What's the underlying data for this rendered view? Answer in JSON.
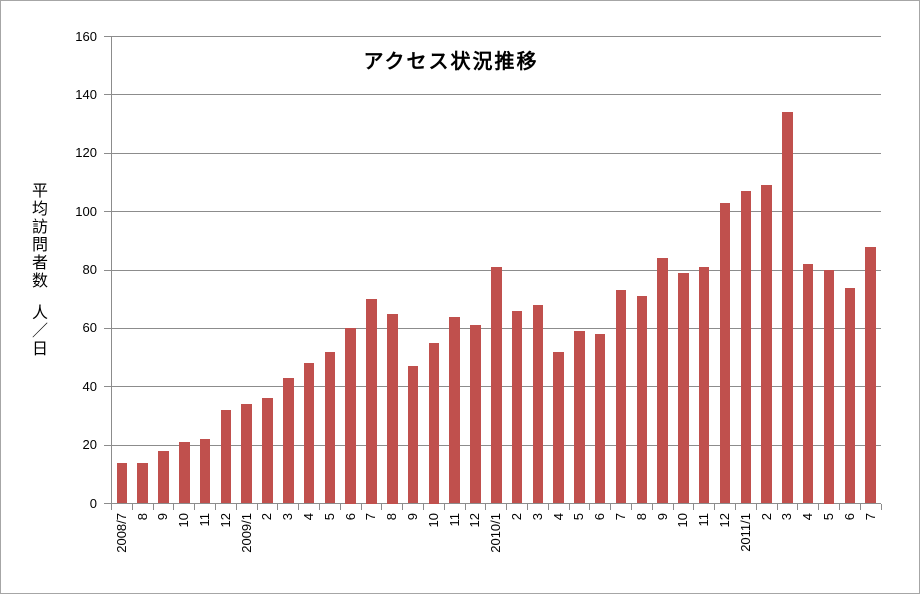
{
  "chart_data": {
    "type": "bar",
    "title": "アクセス状況推移",
    "ylabel": "平均訪問者数　人／日",
    "xlabel": "",
    "legend": "none",
    "grid": "horizontal",
    "ylim": [
      0,
      160
    ],
    "ytick_step": 20,
    "yticks": [
      0,
      20,
      40,
      60,
      80,
      100,
      120,
      140,
      160
    ],
    "categories": [
      "2008/7",
      "8",
      "9",
      "10",
      "11",
      "12",
      "2009/1",
      "2",
      "3",
      "4",
      "5",
      "6",
      "7",
      "8",
      "9",
      "10",
      "11",
      "12",
      "2010/1",
      "2",
      "3",
      "4",
      "5",
      "6",
      "7",
      "8",
      "9",
      "10",
      "11",
      "12",
      "2011/1",
      "2",
      "3",
      "4",
      "5",
      "6",
      "7"
    ],
    "values": [
      14,
      14,
      18,
      21,
      22,
      32,
      34,
      36,
      43,
      48,
      52,
      60,
      70,
      65,
      47,
      55,
      64,
      61,
      81,
      66,
      68,
      52,
      59,
      58,
      73,
      71,
      84,
      79,
      81,
      103,
      107,
      109,
      134,
      82,
      80,
      74,
      88
    ],
    "colors": {
      "bar": "#C0504D",
      "gridline": "#8C8C8C",
      "axis": "#8C8C8C",
      "text": "#000000",
      "background": "#FFFFFF",
      "outer_border": "#A6A6A6"
    }
  }
}
